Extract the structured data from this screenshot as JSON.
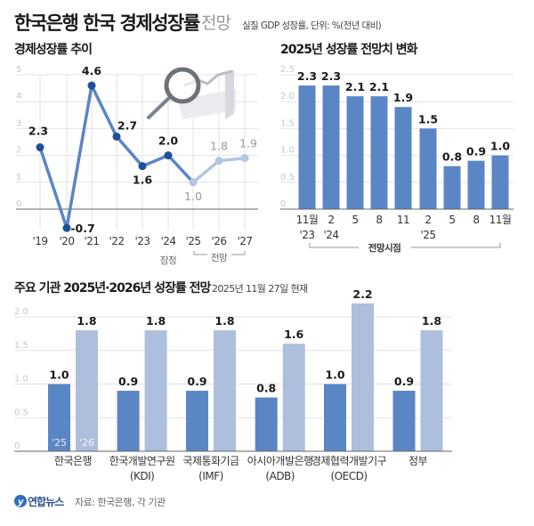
{
  "header": {
    "title": "한국은행 한국 경제성장률",
    "title_light": "전망",
    "subtitle": "실질 GDP 성장률, 단위: %(전년 대비)"
  },
  "colors": {
    "primary": "#5b86c6",
    "dot": "#1f4f9c",
    "forecast": "#b3c5e1",
    "bar2026": "#aebfdd",
    "grid": "#e3e3e3"
  },
  "chart_data": [
    {
      "type": "line",
      "title": "경제성장률 추이",
      "categories": [
        "'19",
        "'20",
        "'21",
        "'22",
        "'23",
        "'24",
        "'25",
        "'26",
        "'27"
      ],
      "values": [
        2.3,
        -0.7,
        4.6,
        2.7,
        1.6,
        2.0,
        1.0,
        1.8,
        1.9
      ],
      "labels": [
        "2.3",
        "-0.7",
        "4.6",
        "2.7",
        "1.6",
        "2.0",
        "1.0",
        "1.8",
        "1.9"
      ],
      "forecast_from_index": 6,
      "yticks": [
        "0",
        "1",
        "2",
        "3",
        "4",
        "5"
      ],
      "ylim": [
        -1,
        5
      ],
      "grid": true,
      "annotations": {
        "provisional": "잠정",
        "forecast": "전망"
      },
      "illustration": "magnifier-chart-icon"
    },
    {
      "type": "bar",
      "title": "2025년 성장률 전망치 변화",
      "categories": [
        [
          "11월",
          "'23"
        ],
        [
          "2",
          "'24"
        ],
        [
          "5",
          ""
        ],
        [
          "8",
          ""
        ],
        [
          "11",
          ""
        ],
        [
          "2",
          "'25"
        ],
        [
          "5",
          ""
        ],
        [
          "8",
          ""
        ],
        [
          "11월",
          ""
        ]
      ],
      "values": [
        2.3,
        2.3,
        2.1,
        2.1,
        1.9,
        1.5,
        0.8,
        0.9,
        1.0
      ],
      "labels": [
        "2.3",
        "2.3",
        "2.1",
        "2.1",
        "1.9",
        "1.5",
        "0.8",
        "0.9",
        "1.0"
      ],
      "yticks": [
        "0",
        "0.5",
        "1.0",
        "1.5",
        "2.0",
        "2.5"
      ],
      "ylim": [
        0,
        2.5
      ],
      "xlabel": "전망시점",
      "grid": true
    },
    {
      "type": "bar",
      "title": "주요 기관 2025년·2026년 성장률 전망",
      "subtitle": "2025년 11월 27일 현재",
      "categories": [
        [
          "한국은행",
          ""
        ],
        [
          "한국개발연구원",
          "(KDI)"
        ],
        [
          "국제통화기금",
          "(IMF)"
        ],
        [
          "아시아개발은행",
          "(ADB)"
        ],
        [
          "경제협력개발기구",
          "(OECD)"
        ],
        [
          "정부",
          ""
        ]
      ],
      "series": [
        {
          "name": "'25",
          "values": [
            1.0,
            0.9,
            0.9,
            0.8,
            1.0,
            0.9
          ],
          "labels": [
            "1.0",
            "0.9",
            "0.9",
            "0.8",
            "1.0",
            "0.9"
          ]
        },
        {
          "name": "'26",
          "values": [
            1.8,
            1.8,
            1.8,
            1.6,
            2.2,
            1.8
          ],
          "labels": [
            "1.8",
            "1.8",
            "1.8",
            "1.6",
            "2.2",
            "1.8"
          ]
        }
      ],
      "yticks": [
        "0",
        "0.5",
        "1.0",
        "1.5",
        "2.0"
      ],
      "ylim": [
        0,
        2.2
      ],
      "grid": true
    }
  ],
  "footer": {
    "logo": "연합뉴스",
    "source": "자료: 한국은행, 각 기관"
  }
}
